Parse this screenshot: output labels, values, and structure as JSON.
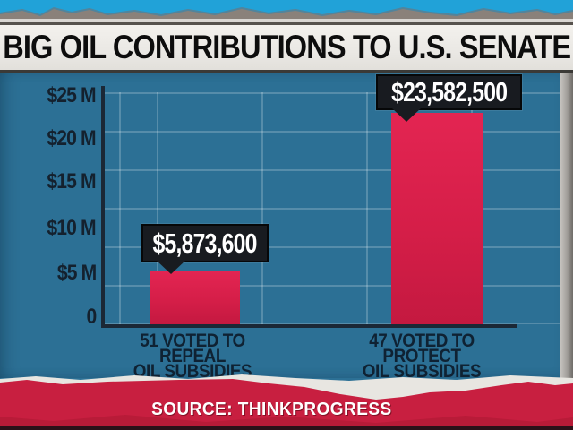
{
  "title_banner": {
    "title": "BIG OIL CONTRIBUTIONS TO U.S. SENATE"
  },
  "chart_data": {
    "type": "bar",
    "title": "BIG OIL CONTRIBUTIONS TO U.S. SENATE",
    "categories": [
      "51 VOTED TO REPEAL OIL SUBSIDIES",
      "47 VOTED TO PROTECT OIL SUBSIDIES"
    ],
    "category_lines": [
      {
        "line1": "51 VOTED TO REPEAL",
        "line2": "OIL SUBSIDIES"
      },
      {
        "line1": "47 VOTED TO PROTECT",
        "line2": "OIL SUBSIDIES"
      }
    ],
    "values": [
      5873600,
      23582500
    ],
    "value_labels": [
      "$5,873,600",
      "$23,582,500"
    ],
    "xlabel": "",
    "ylabel": "",
    "ylim": [
      0,
      25000000
    ],
    "y_ticks": [
      {
        "label": "$25 M",
        "value": 25000000
      },
      {
        "label": "$20 M",
        "value": 20000000
      },
      {
        "label": "$15 M",
        "value": 15000000
      },
      {
        "label": "$10 M",
        "value": 10000000
      },
      {
        "label": "$5 M",
        "value": 5000000
      },
      {
        "label": "0",
        "value": 0
      }
    ],
    "grid": true,
    "legend": false,
    "bar_color": "#d51e48"
  },
  "footer": {
    "source": "SOURCE: THINKPROGRESS"
  },
  "colors": {
    "chart_bg": "#357ba2",
    "bar": "#d51e48",
    "banner_bg": "#eae8e4",
    "banner_text": "#0d0d0d",
    "callout_bg": "#181b20",
    "callout_text": "#ffffff",
    "axis": "#1b2836",
    "tick_text": "#14212e",
    "tear_blue": "#21a2d8",
    "tear_gray": "#8a817a",
    "footer_red": "#c81f40",
    "footer_text": "#ffffff"
  }
}
